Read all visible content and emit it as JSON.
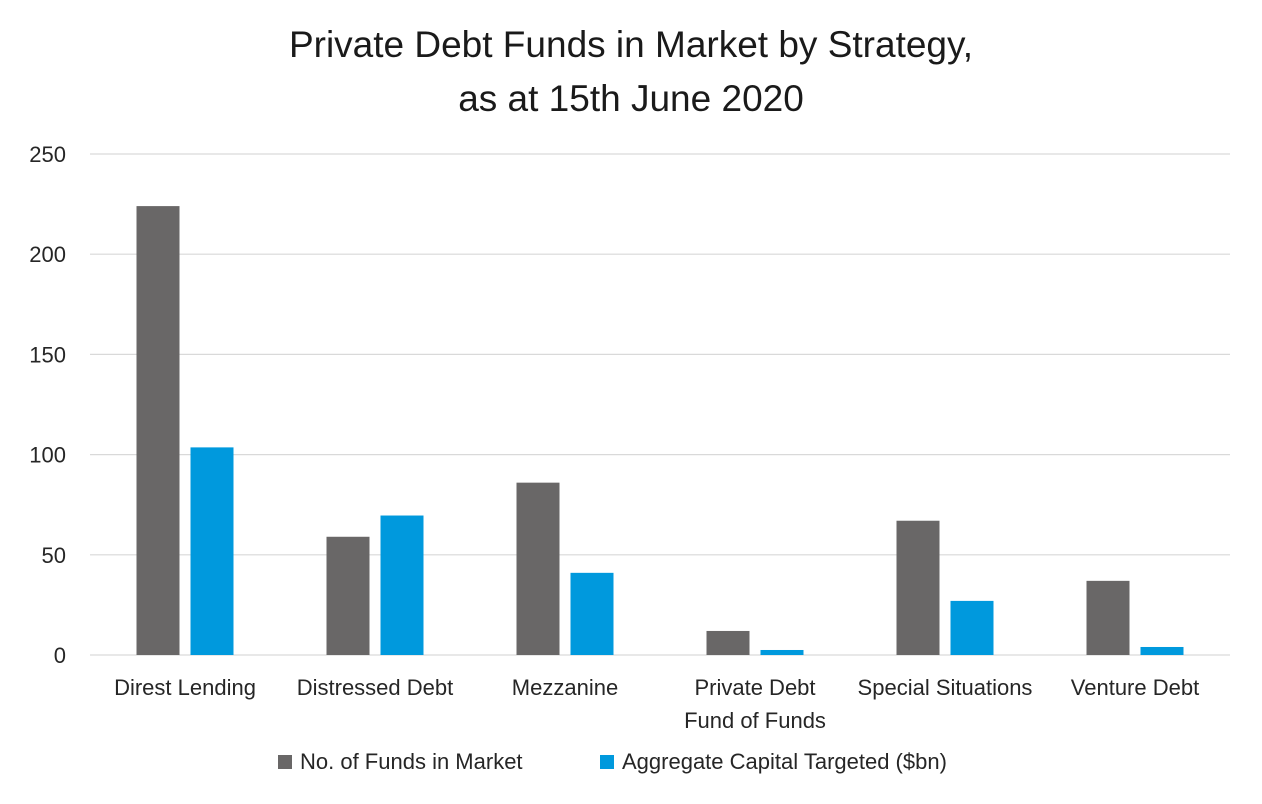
{
  "chart_data": {
    "type": "bar",
    "title": [
      "Private Debt Funds in Market by Strategy,",
      "as at 15th June 2020"
    ],
    "categories": [
      [
        "Direst Lending"
      ],
      [
        "Distressed Debt"
      ],
      [
        "Mezzanine"
      ],
      [
        "Private Debt",
        "Fund of Funds"
      ],
      [
        "Special Situations"
      ],
      [
        "Venture Debt"
      ]
    ],
    "series": [
      {
        "name": "No. of Funds in Market",
        "color": "#696767",
        "values": [
          224,
          59,
          86,
          12,
          67,
          37
        ]
      },
      {
        "name": "Aggregate Capital Targeted  ($bn)",
        "color": "#0099DD",
        "values": [
          103.6,
          69.6,
          41,
          2.5,
          27,
          4
        ]
      }
    ],
    "ylim": [
      0,
      250
    ],
    "yticks": [
      0,
      50,
      100,
      150,
      200,
      250
    ],
    "grid": true,
    "legend_position": "bottom"
  }
}
